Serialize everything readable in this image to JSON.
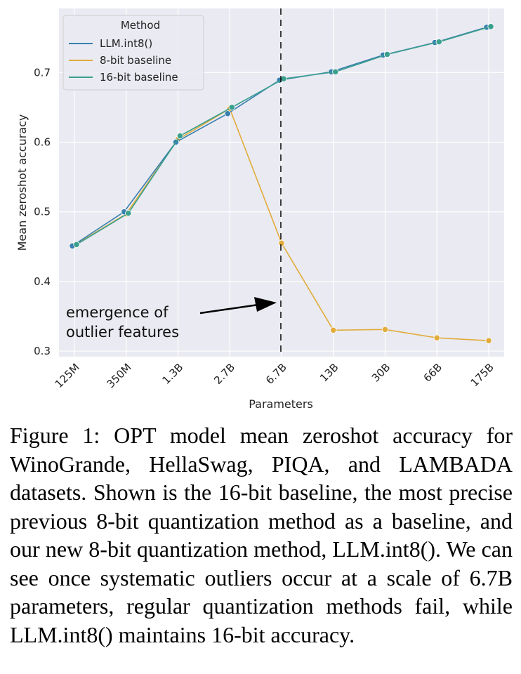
{
  "chart_data": {
    "type": "line",
    "categories": [
      "125M",
      "350M",
      "1.3B",
      "2.7B",
      "6.7B",
      "13B",
      "30B",
      "66B",
      "175B"
    ],
    "series": [
      {
        "name": "LLM.int8()",
        "values": [
          0.451,
          0.5,
          0.6,
          0.641,
          0.689,
          0.701,
          0.725,
          0.743,
          0.765
        ],
        "color": "#3a7fb0"
      },
      {
        "name": "8-bit baseline",
        "values": [
          0.452,
          0.497,
          0.604,
          0.648,
          0.455,
          0.33,
          0.331,
          0.319,
          0.315
        ],
        "color": "#e1ac3a"
      },
      {
        "name": "16-bit baseline",
        "values": [
          0.453,
          0.498,
          0.609,
          0.65,
          0.691,
          0.701,
          0.726,
          0.744,
          0.766
        ],
        "color": "#3a9f8d"
      }
    ],
    "legend_title": "Method",
    "legend_position": "top-left",
    "xlabel": "Parameters",
    "ylabel": "Mean zeroshot accuracy",
    "ylim": [
      0.292,
      0.792
    ],
    "yticks": [
      0.3,
      0.4,
      0.5,
      0.6,
      0.7
    ],
    "ytick_labels": [
      "0.3",
      "0.4",
      "0.5",
      "0.6",
      "0.7"
    ],
    "vline_category": "6.7B",
    "annotation": {
      "lines": [
        "emergence of",
        "outlier features"
      ]
    },
    "background": "#eaeaf2",
    "grid": true
  },
  "caption": "Figure 1: OPT model mean zeroshot accuracy for WinoGrande, HellaSwag, PIQA, and LAMBADA datasets. Shown is the 16-bit baseline, the most precise previous 8-bit quantization method as a baseline, and our new 8-bit quantization method, LLM.int8(). We can see once systematic outliers occur at a scale of 6.7B parameters, regular quantization methods fail, while LLM.int8() maintains 16-bit accuracy."
}
